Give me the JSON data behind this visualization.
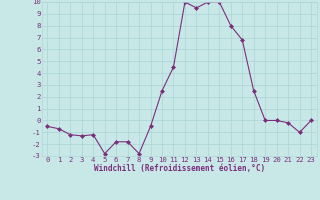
{
  "x": [
    0,
    1,
    2,
    3,
    4,
    5,
    6,
    7,
    8,
    9,
    10,
    11,
    12,
    13,
    14,
    15,
    16,
    17,
    18,
    19,
    20,
    21,
    22,
    23
  ],
  "y": [
    -0.5,
    -0.7,
    -1.2,
    -1.3,
    -1.2,
    -2.8,
    -1.8,
    -1.8,
    -2.8,
    -0.5,
    2.5,
    4.5,
    10.0,
    9.5,
    10.0,
    10.0,
    8.0,
    6.8,
    2.5,
    0.0,
    0.0,
    -0.2,
    -1.0,
    0.0
  ],
  "xlabel": "Windchill (Refroidissement éolien,°C)",
  "ylim": [
    -3,
    10
  ],
  "xlim": [
    -0.5,
    23.5
  ],
  "yticks": [
    -3,
    -2,
    -1,
    0,
    1,
    2,
    3,
    4,
    5,
    6,
    7,
    8,
    9,
    10
  ],
  "xticks": [
    0,
    1,
    2,
    3,
    4,
    5,
    6,
    7,
    8,
    9,
    10,
    11,
    12,
    13,
    14,
    15,
    16,
    17,
    18,
    19,
    20,
    21,
    22,
    23
  ],
  "line_color": "#7b2f7b",
  "marker_color": "#7b2f7b",
  "bg_color": "#c8e8e8",
  "grid_color": "#b0d8d8",
  "text_color": "#7b2f7b",
  "font": "monospace",
  "tick_fontsize": 5.2,
  "xlabel_fontsize": 5.5
}
